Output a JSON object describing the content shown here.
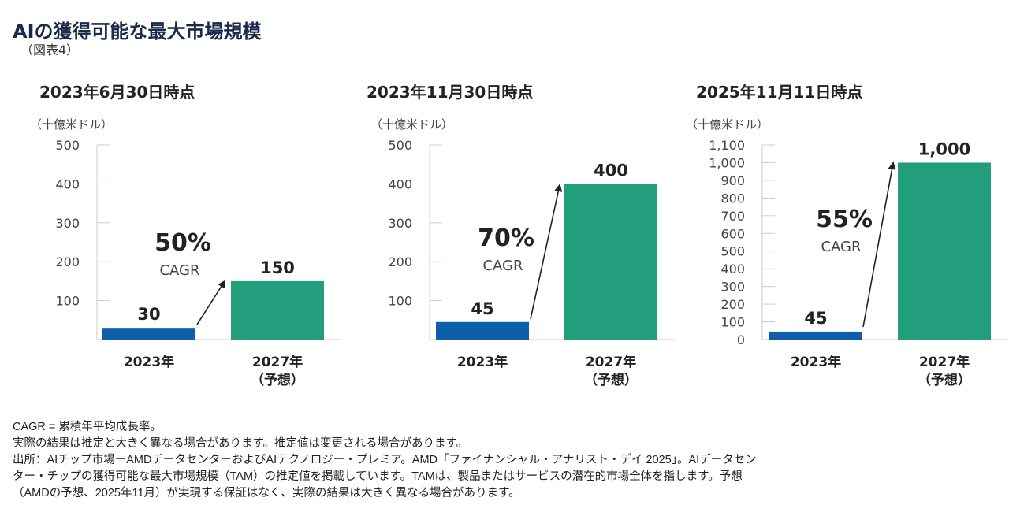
{
  "title": "AIの獲得可能な最大市場規模",
  "figure_label": "（図表4）",
  "colors": {
    "bar_2023": "#0e5fa8",
    "bar_2027": "#229e7d",
    "title": "#1b2a4a"
  },
  "chart_data": [
    {
      "type": "bar",
      "title": "2023年6月30日時点",
      "ylabel": "（十億米ドル）",
      "ylim": [
        0,
        500
      ],
      "yticks": [
        "100",
        "200",
        "300",
        "400",
        "500"
      ],
      "ytick_values": [
        100,
        200,
        300,
        400,
        500
      ],
      "categories": [
        "2023年",
        "2027年"
      ],
      "category_sub": [
        "",
        "（予想）"
      ],
      "values": [
        30,
        150
      ],
      "value_labels": [
        "30",
        "150"
      ],
      "cagr": {
        "value": "50%",
        "label": "CAGR"
      }
    },
    {
      "type": "bar",
      "title": "2023年11月30日時点",
      "ylabel": "（十億米ドル）",
      "ylim": [
        0,
        500
      ],
      "yticks": [
        "100",
        "200",
        "300",
        "400",
        "500"
      ],
      "ytick_values": [
        100,
        200,
        300,
        400,
        500
      ],
      "categories": [
        "2023年",
        "2027年"
      ],
      "category_sub": [
        "",
        "（予想）"
      ],
      "values": [
        45,
        400
      ],
      "value_labels": [
        "45",
        "400"
      ],
      "cagr": {
        "value": "70%",
        "label": "CAGR"
      }
    },
    {
      "type": "bar",
      "title": "2025年11月11日時点",
      "ylabel": "（十億米ドル）",
      "ylim": [
        0,
        1100
      ],
      "yticks": [
        "0",
        "100",
        "200",
        "300",
        "400",
        "500",
        "600",
        "700",
        "800",
        "900",
        "1,000",
        "1,100"
      ],
      "ytick_values": [
        0,
        100,
        200,
        300,
        400,
        500,
        600,
        700,
        800,
        900,
        1000,
        1100
      ],
      "categories": [
        "2023年",
        "2027年"
      ],
      "category_sub": [
        "",
        "（予想）"
      ],
      "values": [
        45,
        1000
      ],
      "value_labels": [
        "45",
        "1,000"
      ],
      "cagr": {
        "value": "55%",
        "label": "CAGR"
      }
    }
  ],
  "notes": [
    "CAGR = 累積年平均成長率。",
    "実際の結果は推定と大きく異なる場合があります。推定値は変更される場合があります。",
    "出所：AIチップ市場ーAMDデータセンターおよびAIテクノロジー・プレミア。AMD「ファイナンシャル・アナリスト・デイ 2025」。AIデータセン",
    "ター・チップの獲得可能な最大市場規模（TAM）の推定値を掲載しています。TAMは、製品またはサービスの潜在的市場全体を指します。予想",
    "（AMDの予想、2025年11月）が実現する保証はなく、実際の結果は大きく異なる場合があります。"
  ]
}
